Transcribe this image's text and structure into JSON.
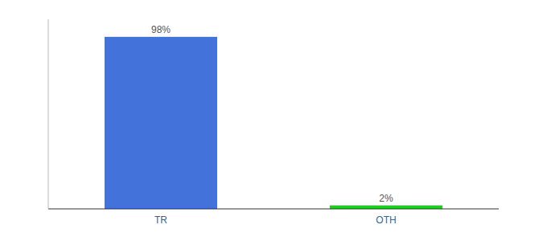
{
  "chart_data": {
    "type": "bar",
    "categories": [
      "TR",
      "OTH"
    ],
    "values": [
      98,
      2
    ],
    "value_labels": [
      "98%",
      "2%"
    ],
    "colors": [
      "#4472db",
      "#22cc22"
    ],
    "ylim": [
      0,
      108
    ],
    "data_labels": true,
    "tick_labels": "x"
  }
}
